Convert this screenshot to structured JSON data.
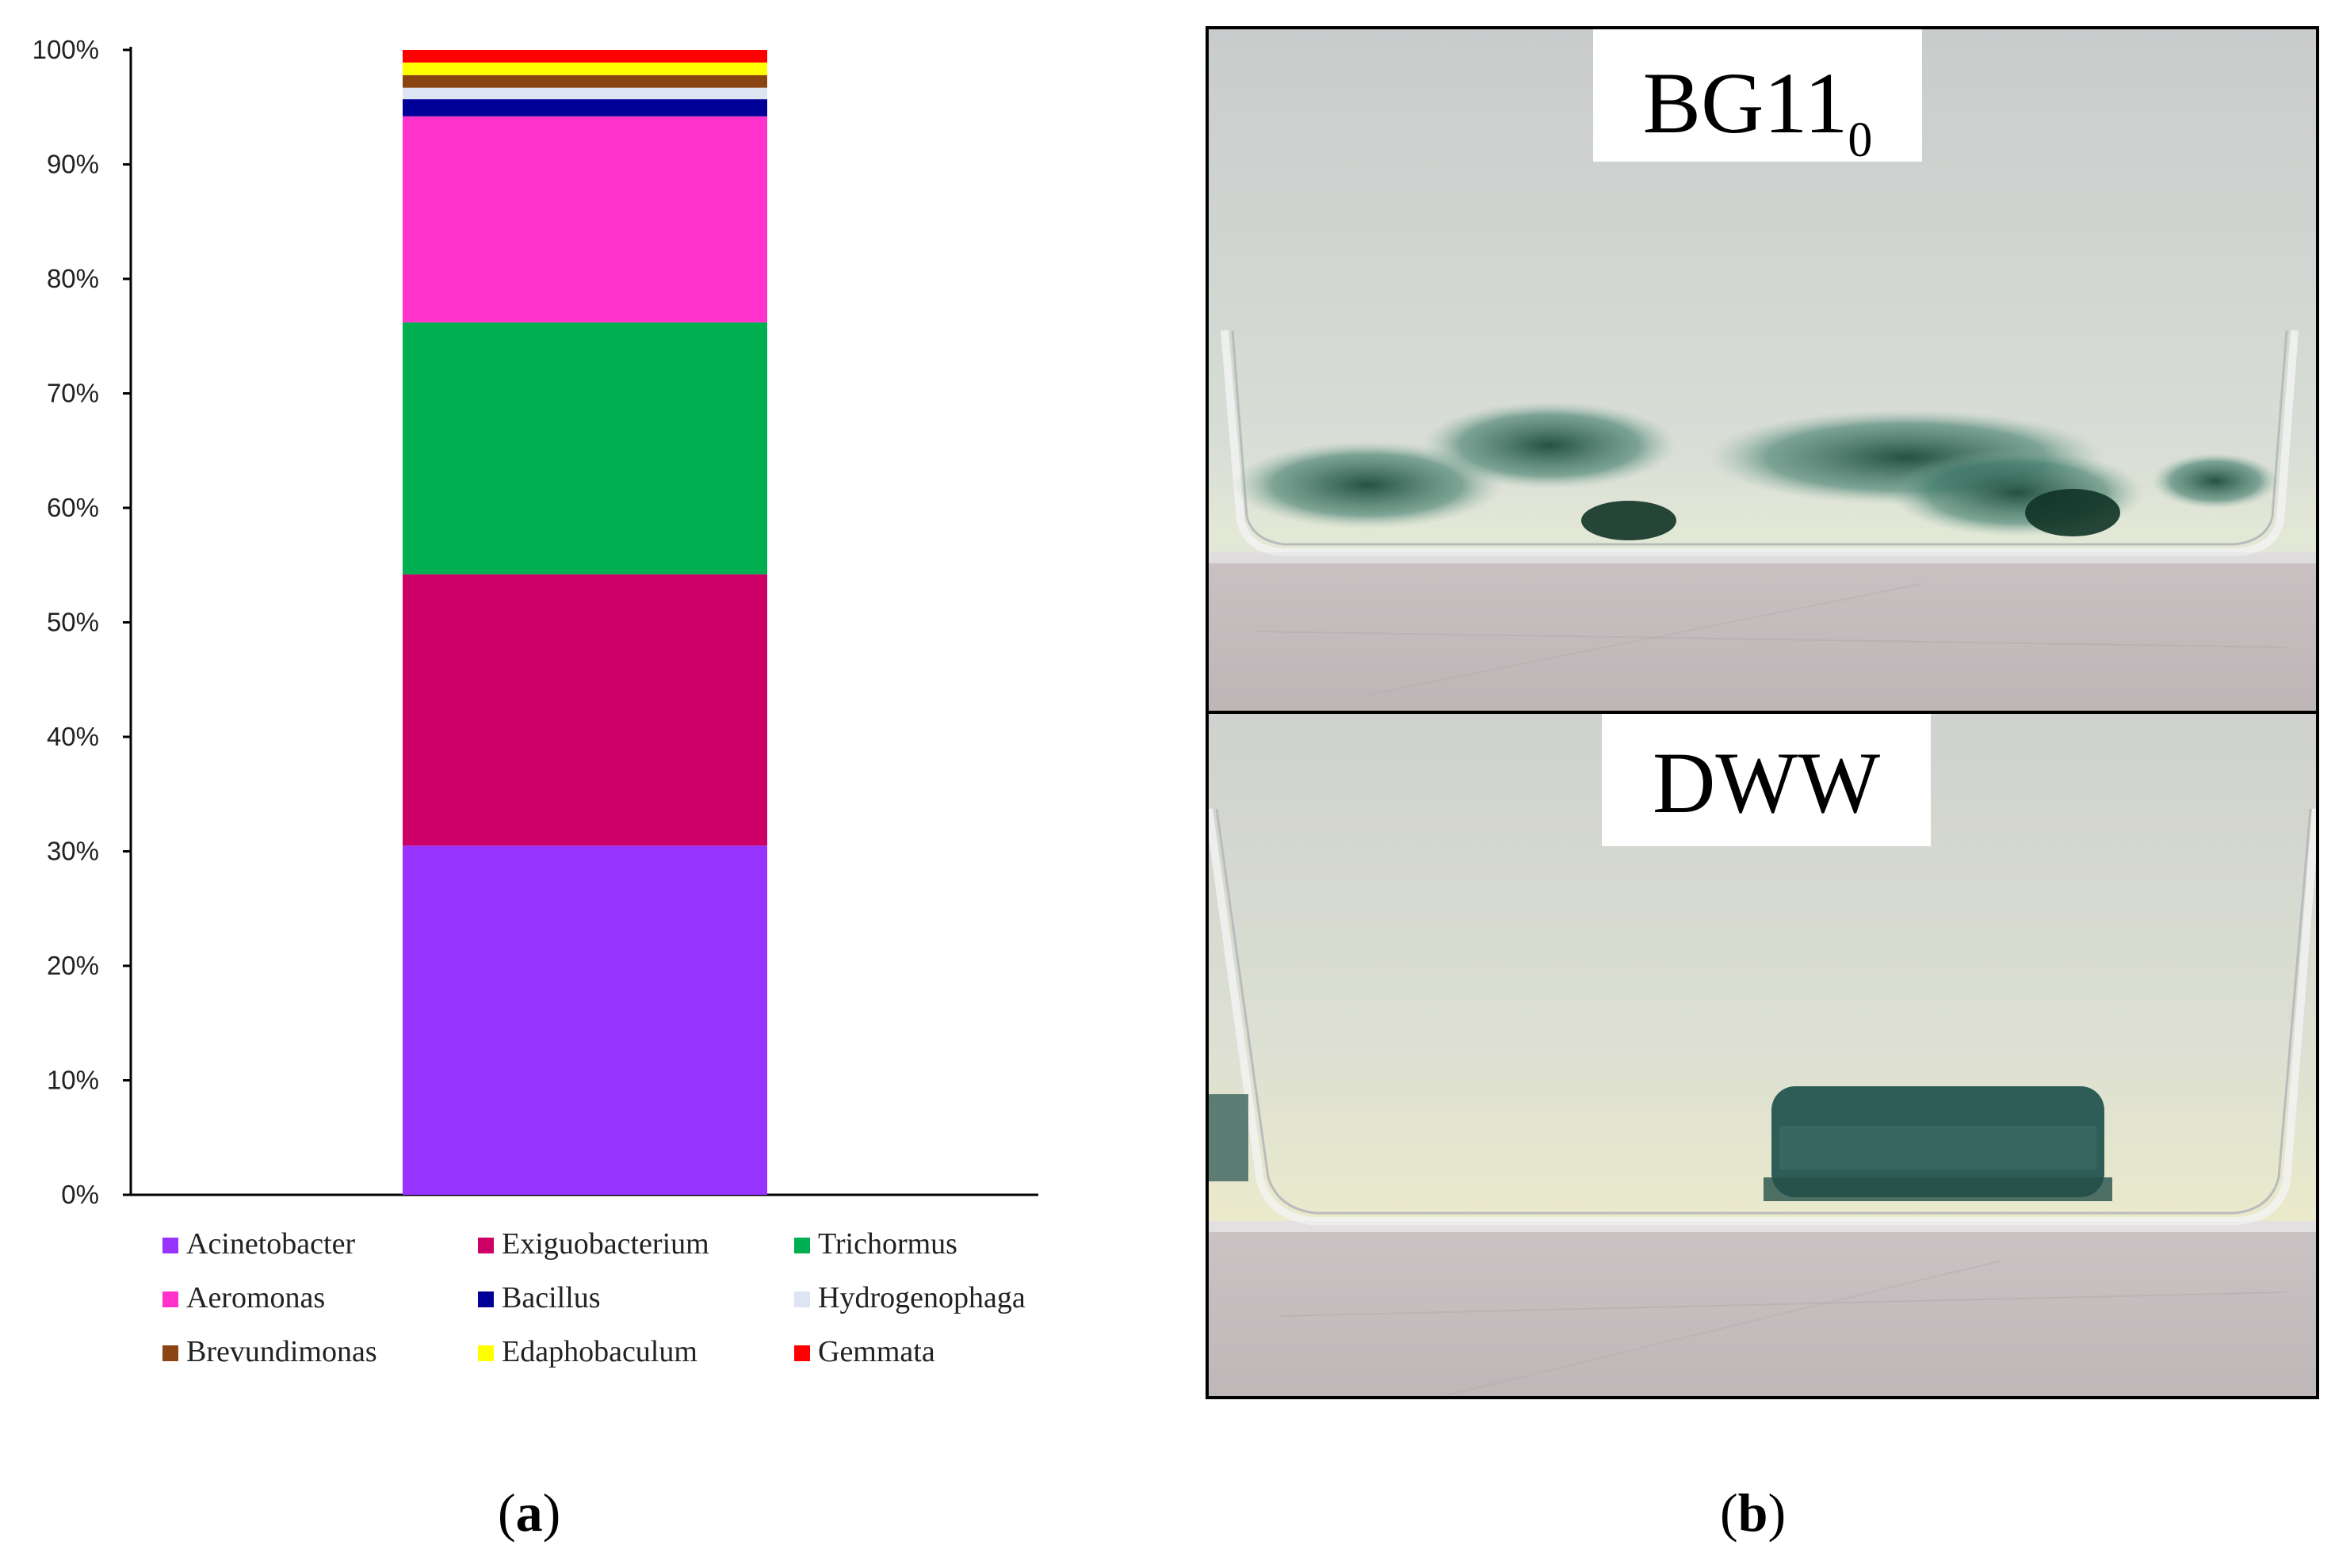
{
  "chart_data": {
    "type": "bar",
    "stacked": true,
    "categories": [
      ""
    ],
    "ylim": [
      0,
      100
    ],
    "y_ticks": [
      "0%",
      "10%",
      "20%",
      "30%",
      "40%",
      "50%",
      "60%",
      "70%",
      "80%",
      "90%",
      "100%"
    ],
    "series": [
      {
        "name": "Acinetobacter",
        "values": [
          30.5
        ],
        "color": "#9933FF"
      },
      {
        "name": "Exiguobacterium",
        "values": [
          23.7
        ],
        "color": "#CC0066"
      },
      {
        "name": "Trichormus",
        "values": [
          22.0
        ],
        "color": "#00B050"
      },
      {
        "name": "Aeromonas",
        "values": [
          18.0
        ],
        "color": "#FF33CC"
      },
      {
        "name": "Bacillus",
        "values": [
          1.5
        ],
        "color": "#000099"
      },
      {
        "name": "Hydrogenophaga",
        "values": [
          1.0
        ],
        "color": "#DDE4F2"
      },
      {
        "name": "Brevundimonas",
        "values": [
          1.1
        ],
        "color": "#8B4513"
      },
      {
        "name": "Edaphobaculum",
        "values": [
          1.1
        ],
        "color": "#FFFF00"
      },
      {
        "name": "Gemmata",
        "values": [
          1.1
        ],
        "color": "#FF0000"
      }
    ],
    "legend_position": "bottom",
    "grid": false
  },
  "panels": {
    "a": {
      "open": "(",
      "letter": "a",
      "close": ")"
    },
    "b": {
      "open": "(",
      "letter": "b",
      "close": ")"
    }
  },
  "photos": {
    "top": {
      "label_main": "BG11",
      "label_sub": "0"
    },
    "bottom": {
      "label_main": "DWW"
    }
  }
}
